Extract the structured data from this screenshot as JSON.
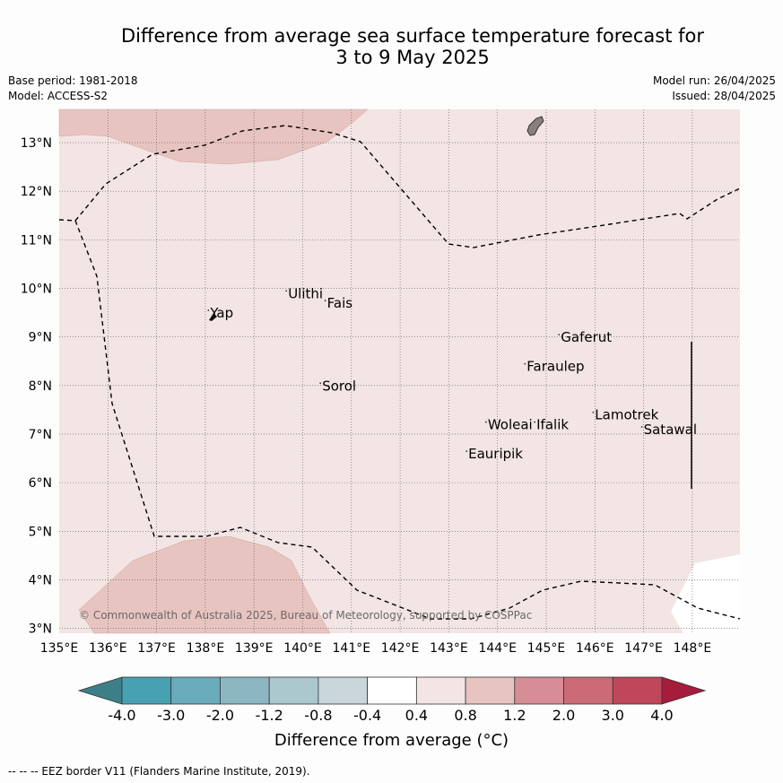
{
  "title_line1": "Difference from average sea surface temperature forecast for",
  "title_line2": "3 to 9 May 2025",
  "base_period": "Base period: 1981-2018",
  "model": "Model: ACCESS-S2",
  "model_run": "Model run: 26/04/2025",
  "issued": "Issued: 28/04/2025",
  "copyright": "© Commonwealth of Australia 2025, Bureau of Meteorology, supported by COSPPac",
  "lon_ticks": [
    "135°E",
    "136°E",
    "137°E",
    "138°E",
    "139°E",
    "140°E",
    "141°E",
    "142°E",
    "143°E",
    "144°E",
    "145°E",
    "146°E",
    "147°E",
    "148°E"
  ],
  "lat_ticks": [
    "3°N",
    "4°N",
    "5°N",
    "6°N",
    "7°N",
    "8°N",
    "9°N",
    "10°N",
    "11°N",
    "12°N",
    "13°N"
  ],
  "places": [
    {
      "name": "Ulithi",
      "lon": 139.7,
      "lat": 9.8
    },
    {
      "name": "Fais",
      "lon": 140.5,
      "lat": 9.6
    },
    {
      "name": "Yap",
      "lon": 138.1,
      "lat": 9.4
    },
    {
      "name": "Gaferut",
      "lon": 145.3,
      "lat": 8.9
    },
    {
      "name": "Faraulep",
      "lon": 144.6,
      "lat": 8.3
    },
    {
      "name": "Sorol",
      "lon": 140.4,
      "lat": 7.9
    },
    {
      "name": "Lamotrek",
      "lon": 146.0,
      "lat": 7.3
    },
    {
      "name": "Satawal",
      "lon": 147.0,
      "lat": 7.0
    },
    {
      "name": "Woleai",
      "lon": 143.8,
      "lat": 7.1
    },
    {
      "name": "Ifalik",
      "lon": 144.8,
      "lat": 7.1
    },
    {
      "name": "Eauripik",
      "lon": 143.4,
      "lat": 6.5
    }
  ],
  "colorbar": {
    "ticks": [
      "-4.0",
      "-3.0",
      "-2.0",
      "-1.2",
      "-0.8",
      "-0.4",
      "0.4",
      "0.8",
      "1.2",
      "2.0",
      "3.0",
      "4.0"
    ],
    "colors": [
      "#3c7f89",
      "#48a0b3",
      "#6aacbb",
      "#8cb7c2",
      "#aac8ce",
      "#c9d7dc",
      "#ffffff",
      "#f3e5e4",
      "#e8c4c0",
      "#d78d95",
      "#cc6a76",
      "#bf4759",
      "#a61c3c"
    ],
    "label": "Difference from average (°C)"
  },
  "legend_footer": "--  --  -- EEZ border V11 (Flanders Marine Institute, 2019).",
  "colors": {
    "background_anomaly": "#f3e5e4",
    "warm_anomaly": "#e8c4c0",
    "land": "#8a7f7f"
  }
}
